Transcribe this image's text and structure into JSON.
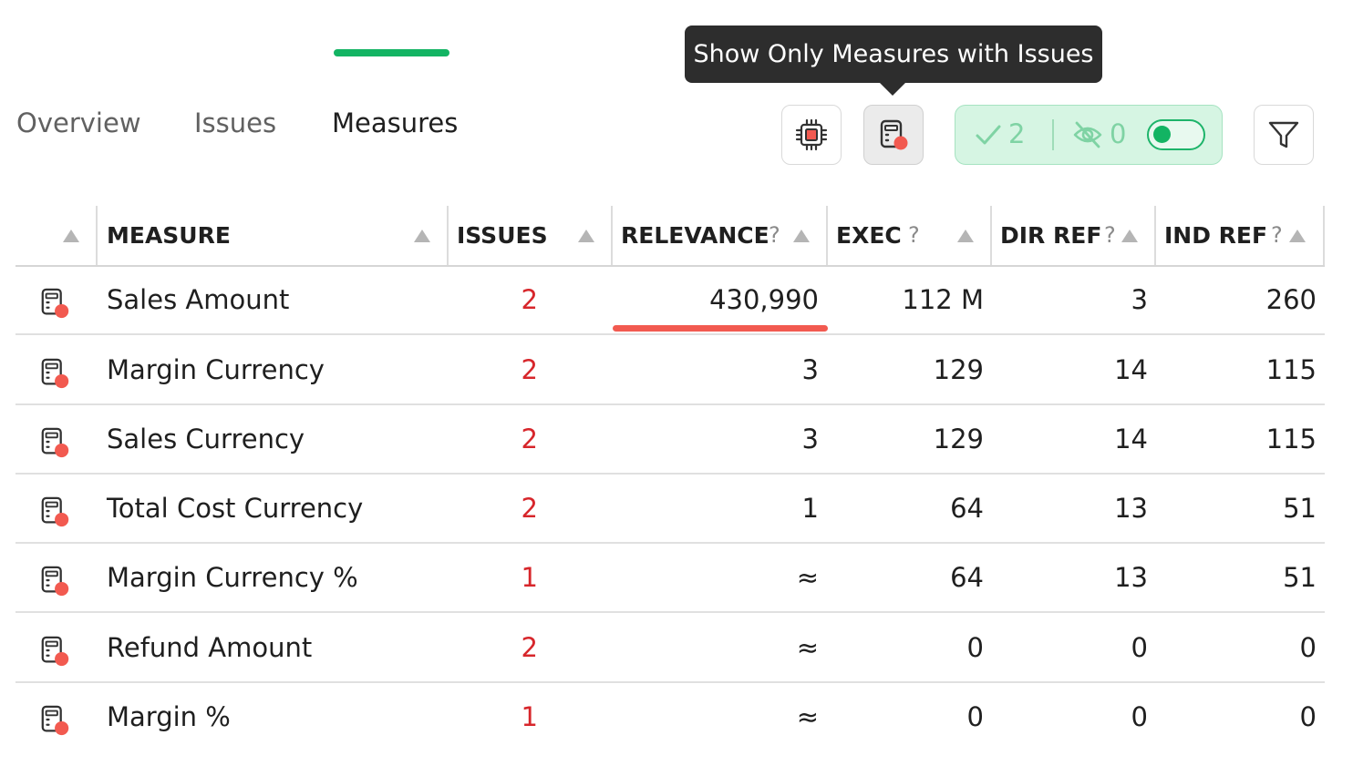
{
  "tooltip": {
    "text": "Show Only Measures with Issues"
  },
  "tabs": [
    {
      "label": "Overview",
      "active": false
    },
    {
      "label": "Issues",
      "active": false
    },
    {
      "label": "Measures",
      "active": true
    }
  ],
  "toolbar": {
    "chip_button_icon": "chip-icon",
    "measures_filter_icon": "measure-issue-icon",
    "filter_icon": "filter-icon",
    "status": {
      "visible_count": "2",
      "hidden_count": "0",
      "toggle_on": true
    }
  },
  "table": {
    "columns": [
      {
        "label": "MEASURE",
        "help": ""
      },
      {
        "label": "ISSUES",
        "help": ""
      },
      {
        "label": "RELEVANCE",
        "help": "?"
      },
      {
        "label": "EXEC",
        "help": "?"
      },
      {
        "label": "DIR REF",
        "help": "?"
      },
      {
        "label": "IND REF",
        "help": "?"
      }
    ],
    "relevance_top_fraction": 1.0,
    "rows": [
      {
        "measure": "Sales Amount",
        "issues": "2",
        "relevance": "430,990",
        "exec": "112 M",
        "dir_ref": "3",
        "ind_ref": "260"
      },
      {
        "measure": "Margin Currency",
        "issues": "2",
        "relevance": "3",
        "exec": "129",
        "dir_ref": "14",
        "ind_ref": "115"
      },
      {
        "measure": "Sales Currency",
        "issues": "2",
        "relevance": "3",
        "exec": "129",
        "dir_ref": "14",
        "ind_ref": "115"
      },
      {
        "measure": "Total Cost Currency",
        "issues": "2",
        "relevance": "1",
        "exec": "64",
        "dir_ref": "13",
        "ind_ref": "51"
      },
      {
        "measure": "Margin Currency %",
        "issues": "1",
        "relevance": "≈",
        "exec": "64",
        "dir_ref": "13",
        "ind_ref": "51"
      },
      {
        "measure": "Refund Amount",
        "issues": "2",
        "relevance": "≈",
        "exec": "0",
        "dir_ref": "0",
        "ind_ref": "0"
      },
      {
        "measure": "Margin %",
        "issues": "1",
        "relevance": "≈",
        "exec": "0",
        "dir_ref": "0",
        "ind_ref": "0"
      }
    ]
  },
  "colors": {
    "accent_green": "#13b463",
    "issue_red": "#d7262b",
    "relevance_bar": "#f25a50",
    "status_bg": "#d6f5e3"
  }
}
